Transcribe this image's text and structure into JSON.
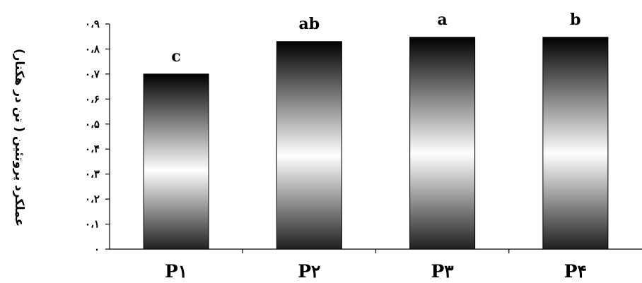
{
  "chart_data": {
    "type": "bar",
    "categories": [
      "P۱",
      "P۲",
      "P۳",
      "P۴"
    ],
    "values": [
      0.7,
      0.83,
      0.847,
      0.847
    ],
    "data_labels": [
      "c",
      "ab",
      "a",
      "b"
    ],
    "ylabel": "عملکرد پروتئین ( تن در هکتار)",
    "xlabel": "",
    "ylim": [
      0,
      0.9
    ],
    "y_ticks": [
      0,
      0.1,
      0.2,
      0.3,
      0.4,
      0.5,
      0.6,
      0.7,
      0.8,
      0.9
    ],
    "y_tick_labels": [
      "۰",
      "۰،۱",
      "۰،۲",
      "۰،۳",
      "۰،۴",
      "۰،۵",
      "۰،۶",
      "۰،۷",
      "۰،۸",
      "۰،۹"
    ],
    "grid": false,
    "legend": "none",
    "bar_fill": "gradient black-white-black"
  }
}
